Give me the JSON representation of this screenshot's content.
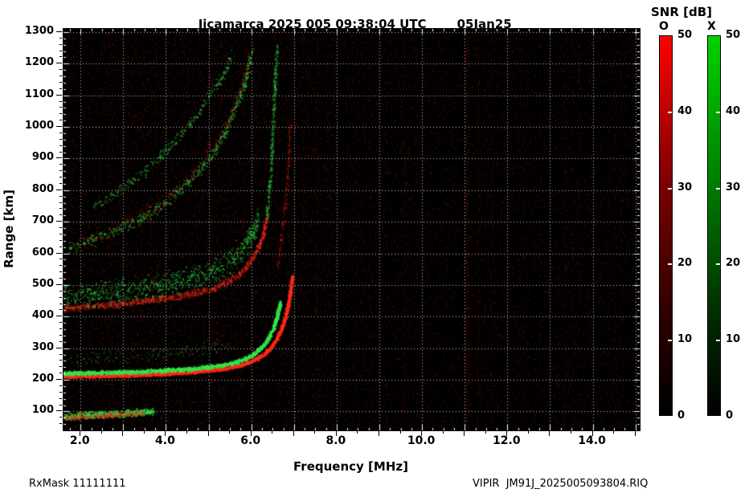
{
  "header": {
    "title": "Jicamarca 2025 005 09:38:04 UTC",
    "date": "05Jan25"
  },
  "colorbar": {
    "title": "SNR [dB]",
    "o_label": "O",
    "x_label": "X",
    "ticks": [
      50,
      40,
      30,
      20,
      10,
      0
    ],
    "range_db": [
      0,
      50
    ],
    "o_top_color": "#ff0000",
    "x_top_color": "#00d400",
    "bottom_color": "#000000"
  },
  "axes": {
    "xlabel": "Frequency [MHz]",
    "ylabel": "Range [km]",
    "x_tick_labels": [
      "2.0",
      "4.0",
      "6.0",
      "8.0",
      "10.0",
      "12.0",
      "14.0"
    ],
    "x_tick_values": [
      2,
      4,
      6,
      8,
      10,
      12,
      14
    ],
    "y_tick_values": [
      100,
      200,
      300,
      400,
      500,
      600,
      700,
      800,
      900,
      1000,
      1100,
      1200,
      1300
    ],
    "x_grid": [
      2,
      3,
      4,
      5,
      6,
      7,
      8,
      9,
      10,
      11,
      12,
      13,
      14,
      15
    ],
    "y_grid": [
      100,
      200,
      300,
      400,
      500,
      600,
      700,
      800,
      900,
      1000,
      1100,
      1200,
      1300
    ]
  },
  "footer": {
    "left": "RxMask 11111111",
    "right": "VIPIR  JM91J_2025005093804.RIQ"
  },
  "chart_data": {
    "type": "heatmap",
    "title": "Jicamarca 2025 005 09:38:04 UTC 05Jan25",
    "xlabel": "Frequency [MHz]",
    "ylabel": "Range [km]",
    "xlim": [
      1.6,
      15.1
    ],
    "ylim": [
      40,
      1310
    ],
    "x_ticks_mhz": [
      2,
      4,
      6,
      8,
      10,
      12,
      14
    ],
    "y_ticks_km": [
      100,
      200,
      300,
      400,
      500,
      600,
      700,
      800,
      900,
      1000,
      1100,
      1200,
      1300
    ],
    "snr_scale_db": [
      0,
      50
    ],
    "modes": {
      "O": "#ff0000",
      "X": "#00d400"
    },
    "critical_frequency_estimate_mhz": {
      "O": 6.95,
      "X": 6.65
    },
    "minimum_virtual_height_km": 210,
    "traces": [
      {
        "name": "E-region-echo-X",
        "mode": "X",
        "points": [
          [
            1.6,
            85
          ],
          [
            2.2,
            90
          ],
          [
            3.0,
            95
          ],
          [
            3.7,
            102
          ]
        ],
        "thickness_km": 13,
        "density": 1.6,
        "brightness": 0.75
      },
      {
        "name": "E-region-echo-O",
        "mode": "O",
        "points": [
          [
            1.6,
            82
          ],
          [
            2.4,
            88
          ],
          [
            3.5,
            97
          ]
        ],
        "thickness_km": 11,
        "density": 1.0,
        "brightness": 0.45
      },
      {
        "name": "F-region-1st-hop-O",
        "mode": "O",
        "points": [
          [
            1.6,
            212
          ],
          [
            2.5,
            214
          ],
          [
            3.5,
            218
          ],
          [
            4.5,
            225
          ],
          [
            5.2,
            234
          ],
          [
            5.7,
            246
          ],
          [
            6.0,
            260
          ],
          [
            6.3,
            283
          ],
          [
            6.5,
            312
          ],
          [
            6.65,
            348
          ],
          [
            6.78,
            395
          ],
          [
            6.88,
            455
          ],
          [
            6.95,
            530
          ]
        ],
        "thickness_km": 7,
        "density": 2.2,
        "brightness": 0.95
      },
      {
        "name": "F-region-1st-hop-X",
        "mode": "X",
        "points": [
          [
            1.6,
            222
          ],
          [
            2.5,
            224
          ],
          [
            3.5,
            228
          ],
          [
            4.5,
            235
          ],
          [
            5.2,
            245
          ],
          [
            5.6,
            256
          ],
          [
            5.9,
            271
          ],
          [
            6.15,
            293
          ],
          [
            6.35,
            323
          ],
          [
            6.5,
            361
          ],
          [
            6.6,
            406
          ],
          [
            6.67,
            447
          ]
        ],
        "thickness_km": 8,
        "density": 2.0,
        "brightness": 0.95
      },
      {
        "name": "F-region-2nd-hop-O",
        "mode": "O",
        "points": [
          [
            1.6,
            428
          ],
          [
            2.5,
            436
          ],
          [
            3.5,
            450
          ],
          [
            4.5,
            470
          ],
          [
            5.1,
            492
          ],
          [
            5.5,
            516
          ],
          [
            5.8,
            546
          ],
          [
            6.05,
            592
          ],
          [
            6.25,
            652
          ],
          [
            6.35,
            712
          ]
        ],
        "thickness_km": 13,
        "density": 1.1,
        "brightness": 0.5
      },
      {
        "name": "F-region-2nd-hop-X-spread",
        "mode": "X",
        "points": [
          [
            1.6,
            462
          ],
          [
            2.5,
            474
          ],
          [
            3.5,
            492
          ],
          [
            4.3,
            512
          ],
          [
            5.0,
            542
          ],
          [
            5.5,
            577
          ],
          [
            5.8,
            617
          ],
          [
            6.0,
            662
          ],
          [
            6.15,
            712
          ]
        ],
        "thickness_km": 48,
        "density": 1.0,
        "brightness": 0.5
      },
      {
        "name": "3rd-hop-arc-X",
        "mode": "X",
        "points": [
          [
            1.7,
            615
          ],
          [
            2.2,
            640
          ],
          [
            2.8,
            672
          ],
          [
            3.4,
            710
          ],
          [
            3.9,
            755
          ],
          [
            4.4,
            812
          ],
          [
            4.9,
            882
          ],
          [
            5.3,
            962
          ],
          [
            5.6,
            1052
          ],
          [
            5.85,
            1142
          ],
          [
            6.0,
            1238
          ]
        ],
        "thickness_km": 22,
        "density": 0.45,
        "brightness": 0.55
      },
      {
        "name": "4th-hop-arc-X",
        "mode": "X",
        "points": [
          [
            2.3,
            752
          ],
          [
            2.9,
            802
          ],
          [
            3.5,
            862
          ],
          [
            4.0,
            927
          ],
          [
            4.5,
            1002
          ],
          [
            4.9,
            1077
          ],
          [
            5.3,
            1162
          ],
          [
            5.55,
            1232
          ]
        ],
        "thickness_km": 20,
        "density": 0.35,
        "brightness": 0.5
      },
      {
        "name": "multi-hop-diffuse-O",
        "mode": "O",
        "points": [
          [
            1.7,
            625
          ],
          [
            2.5,
            662
          ],
          [
            3.3,
            712
          ],
          [
            4.0,
            772
          ],
          [
            4.6,
            852
          ],
          [
            5.1,
            942
          ],
          [
            5.5,
            1042
          ],
          [
            5.8,
            1142
          ],
          [
            5.95,
            1232
          ]
        ],
        "thickness_km": 30,
        "density": 0.3,
        "brightness": 0.3
      },
      {
        "name": "asymptote-spread-X",
        "mode": "X",
        "points": [
          [
            6.35,
            720
          ],
          [
            6.45,
            860
          ],
          [
            6.5,
            1010
          ],
          [
            6.55,
            1160
          ],
          [
            6.6,
            1255
          ]
        ],
        "thickness_km": 16,
        "density": 0.5,
        "brightness": 0.45
      },
      {
        "name": "asymptote-spread-O",
        "mode": "O",
        "points": [
          [
            6.6,
            560
          ],
          [
            6.75,
            710
          ],
          [
            6.85,
            860
          ],
          [
            6.9,
            1010
          ]
        ],
        "thickness_km": 10,
        "density": 0.35,
        "brightness": 0.3
      },
      {
        "name": "above-trace-speckle-X",
        "mode": "X",
        "points": [
          [
            1.6,
            265
          ],
          [
            3.0,
            272
          ],
          [
            4.5,
            290
          ],
          [
            5.5,
            315
          ]
        ],
        "thickness_km": 28,
        "density": 0.25,
        "brightness": 0.3
      }
    ],
    "interference_stripes": [
      {
        "f": 2.7,
        "w": 4,
        "a": 0.1
      },
      {
        "f": 3.1,
        "w": 3,
        "a": 0.08
      },
      {
        "f": 5.05,
        "w": 3,
        "a": 0.07
      },
      {
        "f": 7.55,
        "w": 3,
        "a": 0.08
      },
      {
        "f": 8.45,
        "w": 4,
        "a": 0.09
      },
      {
        "f": 9.55,
        "w": 5,
        "a": 0.1
      },
      {
        "f": 11.05,
        "w": 4,
        "a": 0.3
      },
      {
        "f": 11.3,
        "w": 2,
        "a": 0.12
      },
      {
        "f": 12.35,
        "w": 3,
        "a": 0.08
      },
      {
        "f": 13.35,
        "w": 3,
        "a": 0.09
      },
      {
        "f": 14.35,
        "w": 3,
        "a": 0.08
      }
    ],
    "noise": {
      "red_column_density": 0.07,
      "green_speckle_density": 0.004
    },
    "grid": "white dotted, every 1 MHz and every 100 km",
    "legend_position": "right colorbars"
  }
}
